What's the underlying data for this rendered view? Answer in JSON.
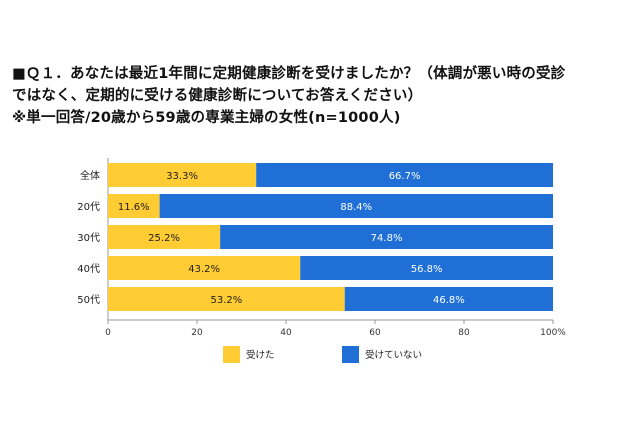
{
  "title": {
    "line1": "■Ｑ１．あなたは最近1年間に定期健康診断を受けましたか？（体調が悪い時の受診",
    "line2": "ではなく、定期的に受ける健康診断についてお答えください）",
    "line3": "※単一回答/20歳から59歳の専業主婦の女性(n=1000人)"
  },
  "colors": {
    "received": "#FFCC33",
    "not_received": "#1F6FD6",
    "grid": "#999999"
  },
  "chart_data": {
    "type": "bar",
    "orientation": "horizontal",
    "stacked": true,
    "categories": [
      "全体",
      "20代",
      "30代",
      "40代",
      "50代"
    ],
    "series": [
      {
        "name": "受けた",
        "values": [
          33.3,
          11.6,
          25.2,
          43.2,
          53.2
        ],
        "labels": [
          "33.3%",
          "11.6%",
          "25.2%",
          "43.2%",
          "53.2%"
        ]
      },
      {
        "name": "受けていない",
        "values": [
          66.7,
          88.4,
          74.8,
          56.8,
          46.8
        ],
        "labels": [
          "66.7%",
          "88.4%",
          "74.8%",
          "56.8%",
          "46.8%"
        ]
      }
    ],
    "xlim": [
      0,
      100
    ],
    "xticks": [
      "0",
      "20",
      "40",
      "60",
      "80",
      "100%"
    ],
    "legend_position": "bottom"
  }
}
